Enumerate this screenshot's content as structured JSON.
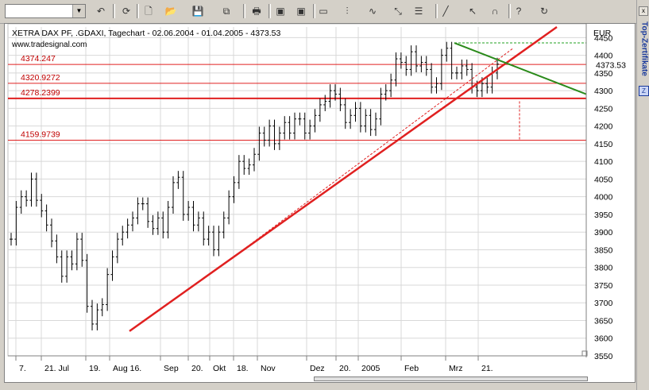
{
  "toolbar": {
    "combo_value": "",
    "buttons": [
      {
        "name": "undo-icon",
        "glyph": "↶"
      },
      {
        "name": "refresh-icon",
        "glyph": "⟳"
      },
      {
        "name": "new-icon",
        "glyph": "🗋"
      },
      {
        "name": "open-folder-icon",
        "glyph": "📂"
      },
      {
        "name": "save-icon",
        "glyph": "💾"
      },
      {
        "name": "copy-icon",
        "glyph": "⧉"
      },
      {
        "name": "print-icon",
        "glyph": "🖶"
      },
      {
        "name": "chart-window-icon",
        "glyph": "▣"
      },
      {
        "name": "chart-window-2-icon",
        "glyph": "▣"
      },
      {
        "name": "display-icon",
        "glyph": "▭"
      },
      {
        "name": "bar-style-icon",
        "glyph": "⫶"
      },
      {
        "name": "indicator-icon",
        "glyph": "∿"
      },
      {
        "name": "drawing-icon",
        "glyph": "⤡"
      },
      {
        "name": "properties-icon",
        "glyph": "☰"
      },
      {
        "name": "trendline-icon",
        "glyph": "╱"
      },
      {
        "name": "cursor-icon",
        "glyph": "↖"
      },
      {
        "name": "magnet-icon",
        "glyph": "∩"
      },
      {
        "name": "help-icon",
        "glyph": "?"
      },
      {
        "name": "reload-icon",
        "glyph": "↻"
      }
    ]
  },
  "sidebar": {
    "label": "Top-Zertifikate",
    "close": "x"
  },
  "chart_data": {
    "type": "bar",
    "title": "XETRA DAX PF, .GDAXI, Tagechart - 02.06.2004 - 01.04.2005 - 4373.53",
    "source": "www.tradesignal.com",
    "currency_label": "EUR",
    "last_price": "4373.53",
    "ylim": [
      3550,
      4480
    ],
    "yticks": [
      3550,
      3600,
      3650,
      3700,
      3750,
      3800,
      3850,
      3900,
      3950,
      4000,
      4050,
      4100,
      4150,
      4200,
      4250,
      4300,
      4350,
      4400,
      4450
    ],
    "xticks": [
      "7.",
      "21. Jul",
      "19.",
      "Aug 16.",
      "Sep",
      "20.",
      "Okt",
      "18.",
      "Nov",
      "Dez",
      "20.",
      "2005",
      "Feb",
      "Mrz",
      "21."
    ],
    "grid": true,
    "horizontal_levels": [
      {
        "label": "4374.247",
        "value": 4374.247
      },
      {
        "label": "4320.9272",
        "value": 4320.9272
      },
      {
        "label": "4278.2399",
        "value": 4278.2399
      },
      {
        "label": "4159.9739",
        "value": 4159.9739
      }
    ],
    "close_series": [
      3880,
      3970,
      4000,
      3990,
      4050,
      3990,
      3960,
      3920,
      3875,
      3830,
      3775,
      3830,
      3810,
      3880,
      3820,
      3690,
      3640,
      3680,
      3695,
      3780,
      3830,
      3880,
      3900,
      3920,
      3940,
      3980,
      3980,
      3930,
      3910,
      3940,
      3900,
      3970,
      4040,
      4055,
      3950,
      3970,
      3920,
      3940,
      3880,
      3900,
      3850,
      3900,
      3940,
      4000,
      4040,
      4100,
      4080,
      4090,
      4120,
      4180,
      4160,
      4200,
      4150,
      4180,
      4210,
      4180,
      4220,
      4220,
      4180,
      4200,
      4230,
      4260,
      4270,
      4300,
      4290,
      4260,
      4210,
      4230,
      4250,
      4200,
      4230,
      4190,
      4220,
      4290,
      4300,
      4330,
      4390,
      4380,
      4360,
      4410,
      4370,
      4380,
      4360,
      4310,
      4320,
      4400,
      4420,
      4350,
      4350,
      4370,
      4360,
      4310,
      4300,
      4320,
      4310,
      4350,
      4375
    ]
  }
}
